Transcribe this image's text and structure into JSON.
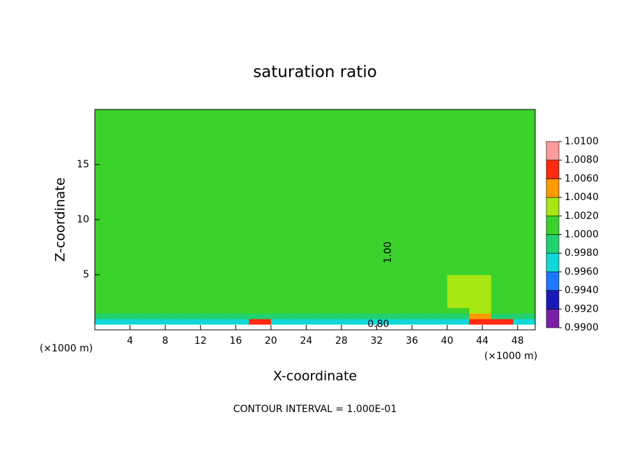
{
  "chart_data": {
    "type": "contour",
    "title": "saturation ratio",
    "x_label": "X-coordinate",
    "y_label": "Z-coordinate",
    "x_unit": "(×1000 m)",
    "y_unit": "(×1000 m)",
    "footer": "CONTOUR INTERVAL = 1.000E-01",
    "contour_labels": [
      "1.00",
      "0.80"
    ],
    "xlim": [
      0,
      50
    ],
    "ylim": [
      0,
      20
    ],
    "xticks": [
      4,
      8,
      12,
      16,
      20,
      24,
      28,
      32,
      36,
      40,
      44,
      48
    ],
    "yticks": [
      5,
      10,
      15
    ],
    "x_edges": [
      0,
      2.5,
      5,
      7.5,
      10,
      12.5,
      15,
      17.5,
      20,
      22.5,
      25,
      27.5,
      30,
      32.5,
      35,
      37.5,
      40,
      42.5,
      45,
      47.5,
      50
    ],
    "z_edges": [
      0,
      0.5,
      1,
      1.5,
      2,
      3,
      5,
      8,
      12,
      16,
      20
    ],
    "values": [
      [
        0.95,
        0.95,
        0.95,
        0.95,
        0.95,
        0.95,
        0.95,
        0.95,
        0.95,
        0.95,
        0.95,
        0.95,
        0.95,
        0.95,
        0.95,
        0.95,
        0.95,
        0.95,
        0.95,
        0.95
      ],
      [
        0.997,
        0.997,
        0.997,
        0.997,
        0.997,
        0.997,
        0.997,
        1.007,
        0.997,
        0.997,
        0.997,
        0.997,
        0.997,
        0.997,
        0.997,
        0.997,
        0.997,
        1.006,
        1.007,
        0.997
      ],
      [
        0.999,
        0.999,
        0.999,
        0.999,
        0.999,
        0.999,
        0.999,
        0.999,
        0.999,
        0.999,
        0.999,
        0.999,
        0.999,
        0.999,
        0.999,
        0.999,
        0.999,
        1.005,
        0.999,
        0.999
      ],
      [
        1.0005,
        1.0005,
        1.0005,
        1.0005,
        1.0005,
        1.0005,
        1.0005,
        1.0005,
        1.0005,
        1.0005,
        1.0005,
        1.0005,
        1.0005,
        1.0005,
        1.0005,
        1.0005,
        1.0005,
        1.003,
        1.0005,
        1.0005
      ],
      [
        1.0005,
        1.0005,
        1.0005,
        1.0005,
        1.0005,
        1.0005,
        1.0005,
        1.0005,
        1.0005,
        1.0005,
        1.0005,
        1.0005,
        1.0005,
        1.0005,
        1.0005,
        1.0005,
        1.0025,
        1.003,
        1.0005,
        1.0005
      ],
      [
        1.0005,
        1.0005,
        1.0005,
        1.0005,
        1.0005,
        1.0005,
        1.0005,
        1.0005,
        1.0005,
        1.0005,
        1.0005,
        1.0005,
        1.0005,
        1.0005,
        1.0005,
        1.0005,
        1.0025,
        1.0025,
        1.0005,
        1.0005
      ],
      [
        1.0005,
        1.0005,
        1.0005,
        1.0005,
        1.0005,
        1.0005,
        1.0005,
        1.0005,
        1.0005,
        1.0005,
        1.0005,
        1.0005,
        1.0005,
        1.0005,
        1.0005,
        1.001,
        1.001,
        1.001,
        1.001,
        1.0005
      ],
      [
        1.0005,
        1.0005,
        1.0005,
        1.0005,
        1.0005,
        1.0005,
        1.0005,
        1.0005,
        1.0005,
        1.0005,
        1.0005,
        1.0005,
        1.0005,
        1.0005,
        1.0005,
        1.0005,
        1.0005,
        1.0005,
        1.0005,
        1.0005
      ],
      [
        1.0005,
        1.0005,
        1.0005,
        1.0005,
        1.0005,
        1.0005,
        1.0005,
        1.0005,
        1.0005,
        1.0005,
        1.0005,
        1.0005,
        1.0005,
        1.0005,
        1.0005,
        1.0005,
        1.0005,
        1.0005,
        1.0005,
        1.0005
      ],
      [
        1.0005,
        1.0005,
        1.0005,
        1.0005,
        1.0005,
        1.0005,
        1.0005,
        1.0005,
        1.0005,
        1.0005,
        1.0005,
        1.0005,
        1.0005,
        1.0005,
        1.0005,
        1.0005,
        1.0005,
        1.0005,
        1.0005,
        1.0005
      ]
    ],
    "colorbar": {
      "levels": [
        {
          "value": 0.99,
          "label": "0.9900"
        },
        {
          "value": 0.992,
          "label": "0.9920"
        },
        {
          "value": 0.994,
          "label": "0.9940"
        },
        {
          "value": 0.996,
          "label": "0.9960"
        },
        {
          "value": 0.998,
          "label": "0.9980"
        },
        {
          "value": 1.0,
          "label": "1.0000"
        },
        {
          "value": 1.002,
          "label": "1.0020"
        },
        {
          "value": 1.004,
          "label": "1.0040"
        },
        {
          "value": 1.006,
          "label": "1.0060"
        },
        {
          "value": 1.008,
          "label": "1.0080"
        },
        {
          "value": 1.01,
          "label": "1.0100"
        }
      ],
      "colors": [
        "#7a1fa8",
        "#1a1ab8",
        "#1e78ff",
        "#10d8d8",
        "#22d070",
        "#3cd22c",
        "#a8e614",
        "#ff9a00",
        "#ff2a10",
        "#ff9a9a"
      ],
      "under_color": "#ffffff"
    }
  }
}
